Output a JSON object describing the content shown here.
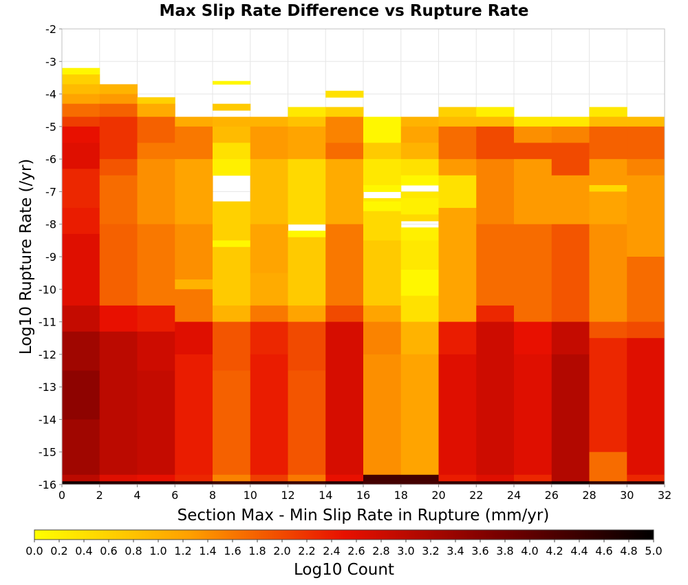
{
  "chart_data": {
    "type": "heatmap",
    "title": "Max Slip Rate Difference vs Rupture Rate",
    "xlabel": "Section Max - Min Slip Rate in Rupture (mm/yr)",
    "ylabel": "Log10 Rupture Rate (/yr)",
    "xlim": [
      0,
      32
    ],
    "ylim": [
      -16,
      -2
    ],
    "x_ticks": [
      "0",
      "2",
      "4",
      "6",
      "8",
      "10",
      "12",
      "14",
      "16",
      "18",
      "20",
      "22",
      "24",
      "26",
      "28",
      "30",
      "32"
    ],
    "y_ticks": [
      "-2",
      "-3",
      "-4",
      "-5",
      "-6",
      "-7",
      "-8",
      "-9",
      "-10",
      "-11",
      "-12",
      "-13",
      "-14",
      "-15",
      "-16"
    ],
    "x_bin_width": 2,
    "y_bin_width": 0.3,
    "colorbar": {
      "label": "Log10 Count",
      "min": 0.0,
      "max": 5.0,
      "ticks": [
        "0.0",
        "0.2",
        "0.4",
        "0.6",
        "0.8",
        "1.0",
        "1.2",
        "1.4",
        "1.6",
        "1.8",
        "2.0",
        "2.2",
        "2.4",
        "2.6",
        "2.8",
        "3.0",
        "3.2",
        "3.4",
        "3.6",
        "3.8",
        "4.0",
        "4.2",
        "4.4",
        "4.6",
        "4.8",
        "5.0"
      ],
      "colors": [
        "#ffff00",
        "#ffa000",
        "#e81000",
        "#780000",
        "#000000"
      ]
    },
    "grid": true,
    "columns": [
      {
        "x": 1,
        "rows": [
          [
            -3.4,
            -3.2,
            0.1
          ],
          [
            -3.7,
            -3.4,
            0.6
          ],
          [
            -4.0,
            -3.7,
            0.9
          ],
          [
            -4.3,
            -4.0,
            1.2
          ],
          [
            -4.7,
            -4.3,
            1.7
          ],
          [
            -5.0,
            -4.7,
            2.1
          ],
          [
            -5.5,
            -5.0,
            2.5
          ],
          [
            -6.3,
            -5.5,
            2.6
          ],
          [
            -7.5,
            -6.3,
            2.3
          ],
          [
            -8.3,
            -7.5,
            2.4
          ],
          [
            -10.5,
            -8.3,
            2.6
          ],
          [
            -11.3,
            -10.5,
            2.9
          ],
          [
            -12.5,
            -11.3,
            3.3
          ],
          [
            -14.0,
            -12.5,
            3.5
          ],
          [
            -15.7,
            -14.0,
            3.3
          ],
          [
            -15.9,
            -15.7,
            3.0
          ],
          [
            -16.0,
            -15.9,
            4.8
          ]
        ]
      },
      {
        "x": 3,
        "rows": [
          [
            -4.0,
            -3.7,
            1.0
          ],
          [
            -4.3,
            -4.0,
            1.3
          ],
          [
            -4.7,
            -4.3,
            1.8
          ],
          [
            -6.0,
            -4.7,
            2.2
          ],
          [
            -6.5,
            -6.0,
            1.9
          ],
          [
            -8.0,
            -6.5,
            1.7
          ],
          [
            -10.5,
            -8.0,
            1.8
          ],
          [
            -11.3,
            -10.5,
            2.5
          ],
          [
            -12.5,
            -11.3,
            3.0
          ],
          [
            -15.7,
            -12.5,
            3.0
          ],
          [
            -15.9,
            -15.7,
            2.6
          ],
          [
            -16.0,
            -15.9,
            4.6
          ]
        ]
      },
      {
        "x": 5,
        "rows": [
          [
            -4.3,
            -4.1,
            0.6
          ],
          [
            -4.7,
            -4.3,
            1.1
          ],
          [
            -5.5,
            -4.7,
            1.8
          ],
          [
            -6.0,
            -5.5,
            1.6
          ],
          [
            -8.0,
            -6.0,
            1.4
          ],
          [
            -10.5,
            -8.0,
            1.6
          ],
          [
            -11.3,
            -10.5,
            2.4
          ],
          [
            -12.5,
            -11.3,
            2.8
          ],
          [
            -15.7,
            -12.5,
            2.9
          ],
          [
            -15.9,
            -15.7,
            2.5
          ],
          [
            -16.0,
            -15.9,
            4.6
          ]
        ]
      },
      {
        "x": 7,
        "rows": [
          [
            -5.0,
            -4.7,
            1.1
          ],
          [
            -6.0,
            -5.0,
            1.6
          ],
          [
            -8.0,
            -6.0,
            1.2
          ],
          [
            -9.7,
            -8.0,
            1.4
          ],
          [
            -10.0,
            -9.7,
            1.0
          ],
          [
            -11.0,
            -10.0,
            1.6
          ],
          [
            -12.0,
            -11.0,
            2.6
          ],
          [
            -15.7,
            -12.0,
            2.4
          ],
          [
            -15.9,
            -15.7,
            2.3
          ],
          [
            -16.0,
            -15.9,
            4.5
          ]
        ]
      },
      {
        "x": 9,
        "rows": [
          [
            -3.7,
            -3.6,
            0.1
          ],
          [
            -4.5,
            -4.3,
            0.7
          ],
          [
            -5.0,
            -4.7,
            1.0
          ],
          [
            -5.5,
            -5.0,
            0.9
          ],
          [
            -6.0,
            -5.5,
            0.4
          ],
          [
            -6.5,
            -6.0,
            0.2
          ],
          [
            -8.5,
            -7.3,
            0.6
          ],
          [
            -8.7,
            -8.5,
            0.1
          ],
          [
            -10.5,
            -8.7,
            0.7
          ],
          [
            -11.0,
            -10.5,
            1.0
          ],
          [
            -12.5,
            -11.0,
            1.9
          ],
          [
            -15.7,
            -12.5,
            1.8
          ],
          [
            -15.9,
            -15.7,
            1.5
          ],
          [
            -16.0,
            -15.9,
            4.4
          ]
        ]
      },
      {
        "x": 11,
        "rows": [
          [
            -5.0,
            -4.7,
            1.0
          ],
          [
            -6.0,
            -5.0,
            1.3
          ],
          [
            -8.0,
            -6.0,
            0.9
          ],
          [
            -9.5,
            -8.0,
            1.2
          ],
          [
            -10.5,
            -9.5,
            1.1
          ],
          [
            -11.0,
            -10.5,
            1.6
          ],
          [
            -12.0,
            -11.0,
            2.3
          ],
          [
            -15.7,
            -12.0,
            2.4
          ],
          [
            -15.9,
            -15.7,
            2.1
          ],
          [
            -16.0,
            -15.9,
            4.5
          ]
        ]
      },
      {
        "x": 13,
        "rows": [
          [
            -4.7,
            -4.4,
            0.3
          ],
          [
            -5.0,
            -4.7,
            0.8
          ],
          [
            -6.0,
            -5.0,
            1.2
          ],
          [
            -8.0,
            -6.0,
            0.5
          ],
          [
            -8.4,
            -8.2,
            0.1
          ],
          [
            -10.5,
            -8.4,
            0.7
          ],
          [
            -11.0,
            -10.5,
            1.2
          ],
          [
            -12.5,
            -11.0,
            2.0
          ],
          [
            -15.7,
            -12.5,
            1.9
          ],
          [
            -15.9,
            -15.7,
            1.6
          ],
          [
            -16.0,
            -15.9,
            4.4
          ]
        ]
      },
      {
        "x": 15,
        "rows": [
          [
            -4.1,
            -3.9,
            0.4
          ],
          [
            -4.7,
            -4.4,
            0.6
          ],
          [
            -5.5,
            -4.7,
            1.5
          ],
          [
            -6.0,
            -5.5,
            1.7
          ],
          [
            -8.0,
            -6.0,
            1.1
          ],
          [
            -10.5,
            -8.0,
            1.6
          ],
          [
            -11.0,
            -10.5,
            2.0
          ],
          [
            -15.7,
            -11.0,
            2.7
          ],
          [
            -15.9,
            -15.7,
            2.5
          ],
          [
            -16.0,
            -15.9,
            4.6
          ]
        ]
      },
      {
        "x": 17,
        "rows": [
          [
            -5.5,
            -4.7,
            0.1
          ],
          [
            -6.0,
            -5.5,
            0.7
          ],
          [
            -6.8,
            -6.0,
            0.3
          ],
          [
            -7.0,
            -6.8,
            0.1
          ],
          [
            -7.3,
            -7.2,
            0.3
          ],
          [
            -7.6,
            -7.3,
            0.1
          ],
          [
            -8.5,
            -7.6,
            0.5
          ],
          [
            -10.5,
            -8.5,
            0.7
          ],
          [
            -11.0,
            -10.5,
            1.2
          ],
          [
            -12.0,
            -11.0,
            1.5
          ],
          [
            -15.7,
            -12.0,
            1.4
          ],
          [
            -16.0,
            -15.7,
            4.3
          ]
        ]
      },
      {
        "x": 19,
        "rows": [
          [
            -5.0,
            -4.7,
            1.0
          ],
          [
            -5.5,
            -5.0,
            1.2
          ],
          [
            -6.0,
            -5.5,
            1.0
          ],
          [
            -6.5,
            -6.0,
            0.4
          ],
          [
            -6.8,
            -6.5,
            0.1
          ],
          [
            -7.2,
            -7.0,
            0.3
          ],
          [
            -7.7,
            -7.2,
            0.2
          ],
          [
            -7.9,
            -7.7,
            0.5
          ],
          [
            -8.5,
            -8.1,
            0.2
          ],
          [
            -9.4,
            -8.5,
            0.3
          ],
          [
            -10.2,
            -9.4,
            0.1
          ],
          [
            -11.0,
            -10.2,
            0.4
          ],
          [
            -12.0,
            -11.0,
            1.0
          ],
          [
            -15.7,
            -12.0,
            1.2
          ],
          [
            -16.0,
            -15.7,
            4.3
          ]
        ]
      },
      {
        "x": 21,
        "rows": [
          [
            -4.7,
            -4.4,
            0.6
          ],
          [
            -5.0,
            -4.7,
            0.9
          ],
          [
            -6.0,
            -5.0,
            1.7
          ],
          [
            -6.5,
            -6.0,
            1.3
          ],
          [
            -7.5,
            -6.5,
            0.4
          ],
          [
            -11.0,
            -7.5,
            1.2
          ],
          [
            -12.0,
            -11.0,
            2.4
          ],
          [
            -15.7,
            -12.0,
            2.6
          ],
          [
            -15.9,
            -15.7,
            2.4
          ],
          [
            -16.0,
            -15.9,
            4.5
          ]
        ]
      },
      {
        "x": 23,
        "rows": [
          [
            -4.7,
            -4.4,
            0.2
          ],
          [
            -5.0,
            -4.7,
            0.9
          ],
          [
            -6.0,
            -5.0,
            2.0
          ],
          [
            -8.0,
            -6.0,
            1.5
          ],
          [
            -10.5,
            -8.0,
            1.7
          ],
          [
            -11.0,
            -10.5,
            2.3
          ],
          [
            -15.7,
            -11.0,
            2.8
          ],
          [
            -15.9,
            -15.7,
            2.6
          ],
          [
            -16.0,
            -15.9,
            4.5
          ]
        ]
      },
      {
        "x": 25,
        "rows": [
          [
            -5.0,
            -4.7,
            0.3
          ],
          [
            -5.5,
            -5.0,
            1.4
          ],
          [
            -6.0,
            -5.5,
            2.0
          ],
          [
            -8.0,
            -6.0,
            1.3
          ],
          [
            -11.0,
            -8.0,
            1.7
          ],
          [
            -12.0,
            -11.0,
            2.5
          ],
          [
            -15.7,
            -12.0,
            2.6
          ],
          [
            -15.9,
            -15.7,
            2.3
          ],
          [
            -16.0,
            -15.9,
            4.5
          ]
        ]
      },
      {
        "x": 27,
        "rows": [
          [
            -5.0,
            -4.7,
            0.3
          ],
          [
            -5.5,
            -5.0,
            1.5
          ],
          [
            -6.5,
            -5.5,
            2.0
          ],
          [
            -8.0,
            -6.5,
            1.3
          ],
          [
            -11.0,
            -8.0,
            1.9
          ],
          [
            -12.0,
            -11.0,
            2.9
          ],
          [
            -15.9,
            -12.0,
            3.1
          ],
          [
            -16.0,
            -15.9,
            4.8
          ]
        ]
      },
      {
        "x": 29,
        "rows": [
          [
            -4.7,
            -4.4,
            0.3
          ],
          [
            -5.0,
            -4.7,
            0.9
          ],
          [
            -6.0,
            -5.0,
            1.8
          ],
          [
            -6.8,
            -6.0,
            1.3
          ],
          [
            -7.0,
            -6.8,
            0.5
          ],
          [
            -8.0,
            -7.0,
            1.2
          ],
          [
            -11.0,
            -8.0,
            1.4
          ],
          [
            -11.5,
            -11.0,
            1.9
          ],
          [
            -15.0,
            -11.5,
            2.3
          ],
          [
            -15.9,
            -15.0,
            1.7
          ],
          [
            -16.0,
            -15.9,
            4.5
          ]
        ]
      },
      {
        "x": 31,
        "rows": [
          [
            -5.0,
            -4.7,
            0.9
          ],
          [
            -6.0,
            -5.0,
            1.8
          ],
          [
            -6.5,
            -6.0,
            1.5
          ],
          [
            -9.0,
            -6.5,
            1.3
          ],
          [
            -11.0,
            -9.0,
            1.7
          ],
          [
            -11.5,
            -11.0,
            2.0
          ],
          [
            -15.7,
            -11.5,
            2.6
          ],
          [
            -15.9,
            -15.7,
            2.3
          ],
          [
            -16.0,
            -15.9,
            4.6
          ]
        ]
      }
    ]
  }
}
